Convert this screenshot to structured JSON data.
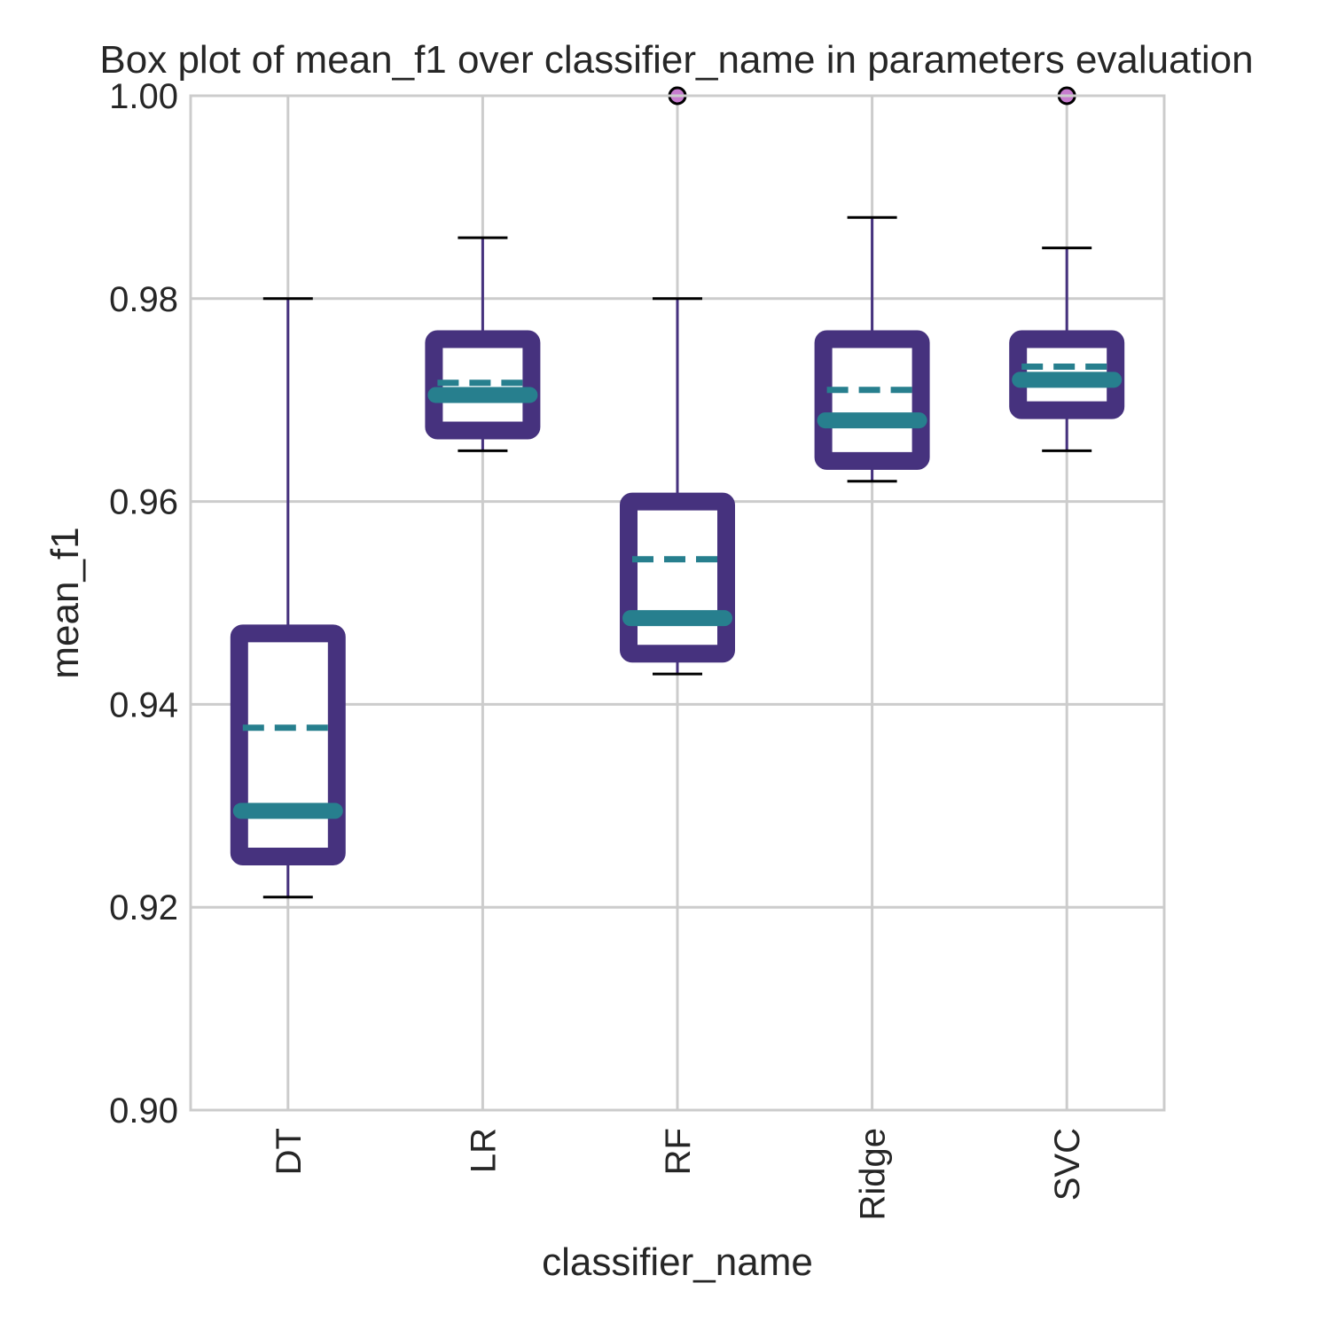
{
  "chart_data": {
    "type": "box",
    "title": "Box plot of mean_f1 over classifier_name in parameters evaluation",
    "xlabel": "classifier_name",
    "ylabel": "mean_f1",
    "ylim": [
      0.9,
      1.0
    ],
    "yticks": [
      "0.90",
      "0.92",
      "0.94",
      "0.96",
      "0.98",
      "1.00"
    ],
    "ytick_values": [
      0.9,
      0.92,
      0.94,
      0.96,
      0.98,
      1.0
    ],
    "grid": true,
    "categories": [
      "DT",
      "LR",
      "RF",
      "Ridge",
      "SVC"
    ],
    "boxes": [
      {
        "whisker_low": 0.921,
        "q1": 0.925,
        "median": 0.9295,
        "mean": 0.9377,
        "q3": 0.947,
        "whisker_high": 0.98,
        "outliers": []
      },
      {
        "whisker_low": 0.965,
        "q1": 0.967,
        "median": 0.9705,
        "mean": 0.9717,
        "q3": 0.976,
        "whisker_high": 0.986,
        "outliers": []
      },
      {
        "whisker_low": 0.943,
        "q1": 0.945,
        "median": 0.9485,
        "mean": 0.9543,
        "q3": 0.96,
        "whisker_high": 0.98,
        "outliers": [
          1.0
        ]
      },
      {
        "whisker_low": 0.962,
        "q1": 0.964,
        "median": 0.968,
        "mean": 0.971,
        "q3": 0.976,
        "whisker_high": 0.988,
        "outliers": []
      },
      {
        "whisker_low": 0.965,
        "q1": 0.969,
        "median": 0.972,
        "mean": 0.9733,
        "q3": 0.976,
        "whisker_high": 0.985,
        "outliers": [
          1.0
        ]
      }
    ],
    "colors": {
      "box": "#46327e",
      "whisker": "#46327e",
      "median": "#277f8e",
      "mean": "#277f8e",
      "cap": "#000000",
      "outlier_fill": "#c77dcf",
      "outlier_edge": "#000000",
      "grid": "#cccccc",
      "frame": "#cccccc"
    }
  }
}
